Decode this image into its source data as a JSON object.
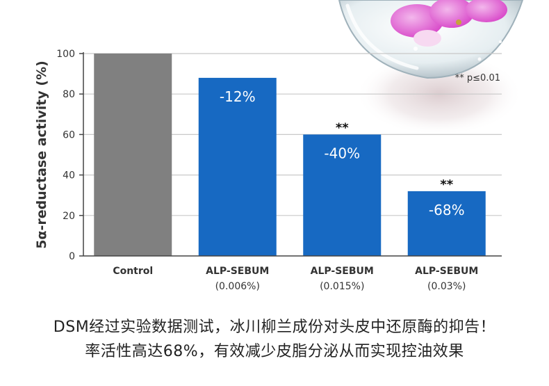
{
  "chart_data": {
    "type": "bar",
    "title": "",
    "xlabel": "",
    "ylabel": "5α-reductase activity (%)",
    "ylim": [
      0,
      100
    ],
    "yticks": [
      0,
      20,
      40,
      60,
      80,
      100
    ],
    "grid": true,
    "categories": [
      {
        "line1": "Control",
        "line2": ""
      },
      {
        "line1": "ALP-SEBUM",
        "line2": "(0.006%)"
      },
      {
        "line1": "ALP-SEBUM",
        "line2": "(0.015%)"
      },
      {
        "line1": "ALP-SEBUM",
        "line2": "(0.03%)"
      }
    ],
    "values": [
      100,
      88,
      60,
      32
    ],
    "bar_labels": [
      "",
      "-12%",
      "-40%",
      "-68%"
    ],
    "significance": [
      "",
      "",
      "**",
      "**"
    ],
    "legend_note": "** p≤0.01",
    "colors": {
      "control": "#808080",
      "treatment": "#1769c2",
      "axis": "#444444"
    }
  },
  "captions": {
    "line1": "DSM经过实验数据测试，冰川柳兰成份对头皮中还原酶的抑告！",
    "line2": "率活性高达68%，有效减少皮脂分泌从而实现控油效果"
  }
}
